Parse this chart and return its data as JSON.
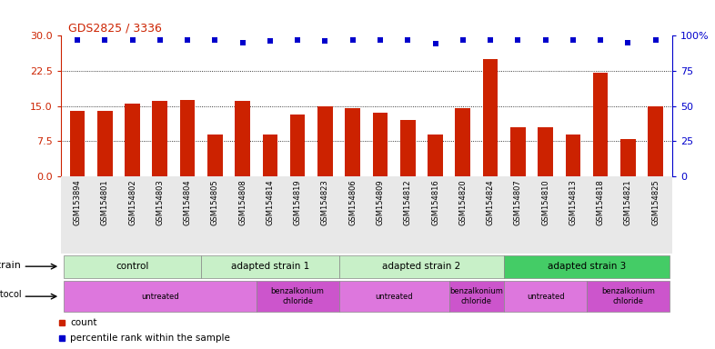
{
  "title": "GDS2825 / 3336",
  "samples": [
    "GSM153894",
    "GSM154801",
    "GSM154802",
    "GSM154803",
    "GSM154804",
    "GSM154805",
    "GSM154808",
    "GSM154814",
    "GSM154819",
    "GSM154823",
    "GSM154806",
    "GSM154809",
    "GSM154812",
    "GSM154816",
    "GSM154820",
    "GSM154824",
    "GSM154807",
    "GSM154810",
    "GSM154813",
    "GSM154818",
    "GSM154821",
    "GSM154825"
  ],
  "counts": [
    14.0,
    14.0,
    15.5,
    16.0,
    16.2,
    9.0,
    16.0,
    9.0,
    13.2,
    15.0,
    14.5,
    13.5,
    12.0,
    9.0,
    14.5,
    25.0,
    10.5,
    10.5,
    9.0,
    22.0,
    8.0,
    15.0
  ],
  "percentiles": [
    97,
    97,
    97,
    97,
    97,
    97,
    95,
    96,
    97,
    96,
    97,
    97,
    97,
    94,
    97,
    97,
    97,
    97,
    97,
    97,
    95,
    97
  ],
  "bar_color": "#cc2200",
  "dot_color": "#0000cc",
  "ylim_left": [
    0,
    30
  ],
  "ylim_right": [
    0,
    100
  ],
  "yticks_left": [
    0,
    7.5,
    15,
    22.5,
    30
  ],
  "yticks_right": [
    0,
    25,
    50,
    75,
    100
  ],
  "strain_groups": [
    {
      "label": "control",
      "start": 0,
      "end": 5,
      "color": "#c8f0c8"
    },
    {
      "label": "adapted strain 1",
      "start": 5,
      "end": 10,
      "color": "#c8f0c8"
    },
    {
      "label": "adapted strain 2",
      "start": 10,
      "end": 16,
      "color": "#c8f0c8"
    },
    {
      "label": "adapted strain 3",
      "start": 16,
      "end": 22,
      "color": "#44cc66"
    }
  ],
  "protocol_groups": [
    {
      "label": "untreated",
      "start": 0,
      "end": 7,
      "color": "#dd77dd"
    },
    {
      "label": "benzalkonium\nchloride",
      "start": 7,
      "end": 10,
      "color": "#cc55cc"
    },
    {
      "label": "untreated",
      "start": 10,
      "end": 14,
      "color": "#dd77dd"
    },
    {
      "label": "benzalkonium\nchloride",
      "start": 14,
      "end": 16,
      "color": "#cc55cc"
    },
    {
      "label": "untreated",
      "start": 16,
      "end": 19,
      "color": "#dd77dd"
    },
    {
      "label": "benzalkonium\nchloride",
      "start": 19,
      "end": 22,
      "color": "#cc55cc"
    }
  ]
}
